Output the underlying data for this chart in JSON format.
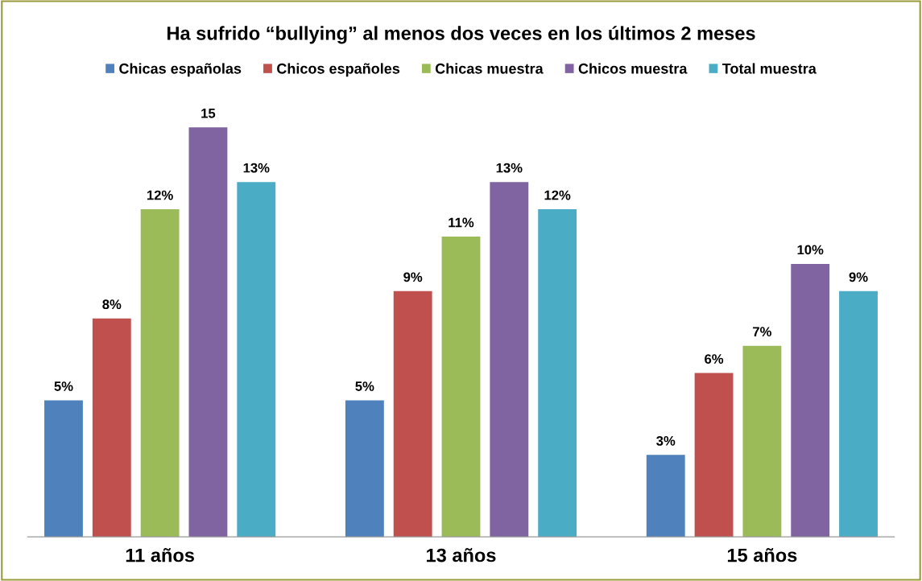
{
  "chart_data": {
    "type": "bar",
    "title": "Ha sufrido “bullying” al menos dos veces en los últimos 2 meses",
    "categories": [
      "11 años",
      "13 años",
      "15 años"
    ],
    "legend": "top",
    "grid": false,
    "series": [
      {
        "name": "Chicas españolas",
        "color": "#4f81bd",
        "values": [
          5,
          5,
          3
        ],
        "value_labels": [
          "5%",
          "5%",
          "3%"
        ]
      },
      {
        "name": "Chicos españoles",
        "color": "#c0504d",
        "values": [
          8,
          9,
          6
        ],
        "value_labels": [
          "8%",
          "9%",
          "6%"
        ]
      },
      {
        "name": "Chicas muestra",
        "color": "#9bbb59",
        "values": [
          12,
          11,
          7
        ],
        "value_labels": [
          "12%",
          "11%",
          "7%"
        ]
      },
      {
        "name": "Chicos muestra",
        "color": "#8064a2",
        "values": [
          15,
          13,
          10
        ],
        "value_labels": [
          "15",
          "13%",
          "10%"
        ]
      },
      {
        "name": "Total muestra",
        "color": "#4bacc6",
        "values": [
          13,
          12,
          9
        ],
        "value_labels": [
          "13%",
          "12%",
          "9%"
        ]
      }
    ]
  }
}
